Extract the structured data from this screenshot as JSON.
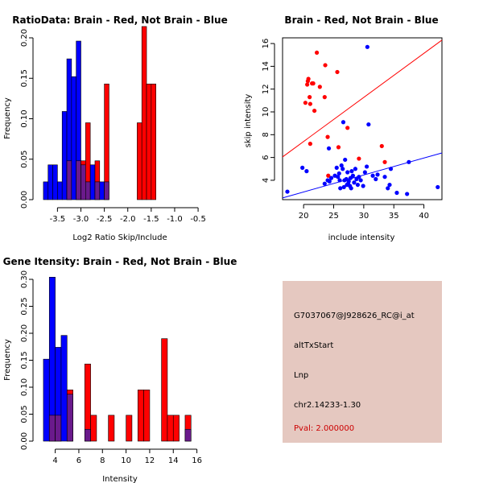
{
  "colors": {
    "red": "#ff0000",
    "blue": "#0000ff",
    "overlap": "#6a1a8c",
    "panel_bg": "#e5c8c0",
    "pval": "#cc0000"
  },
  "chart_data": [
    {
      "type": "bar",
      "subtype": "histogram",
      "title": "RatioData: Brain - Red, Not Brain - Blue",
      "xlabel": "Log2 Ratio Skip/Include",
      "ylabel": "Frequency",
      "xlim": [
        -3.85,
        -0.45
      ],
      "ylim": [
        0,
        0.2
      ],
      "xticks": [
        -3.5,
        -3.0,
        -2.5,
        -2.0,
        -1.5,
        -1.0,
        -0.5
      ],
      "xtick_labels": [
        "-3.5",
        "-3.0",
        "-2.5",
        "-2.0",
        "-1.5",
        "-1.0",
        "-0.5"
      ],
      "yticks": [
        0,
        0.05,
        0.1,
        0.15,
        0.2
      ],
      "ytick_labels": [
        "0.00",
        "0.05",
        "0.10",
        "0.15",
        "0.20"
      ],
      "bin_edges": [
        -3.8,
        -3.7,
        -3.6,
        -3.5,
        -3.4,
        -3.3,
        -3.2,
        -3.1,
        -3.0,
        -2.9,
        -2.8,
        -2.7,
        -2.6,
        -2.5,
        -2.4,
        -2.3,
        -2.2,
        -2.1,
        -2.0,
        -1.9,
        -1.8,
        -1.7,
        -1.6,
        -1.5,
        -1.4,
        -1.3,
        -1.2,
        -1.1,
        -1.0,
        -0.9,
        -0.8,
        -0.7,
        -0.6
      ],
      "series": [
        {
          "name": "Not Brain",
          "color": "blue",
          "values": [
            0.022,
            0.043,
            0.043,
            0.022,
            0.109,
            0.174,
            0.152,
            0.196,
            0.043,
            0.022,
            0.043,
            0.022,
            0.022,
            0.022,
            0,
            0,
            0,
            0,
            0,
            0,
            0,
            0,
            0,
            0,
            0,
            0,
            0,
            0,
            0,
            0,
            0,
            0
          ]
        },
        {
          "name": "Brain",
          "color": "red",
          "values": [
            0,
            0,
            0,
            0,
            0,
            0.048,
            0,
            0.048,
            0.048,
            0.095,
            0,
            0.048,
            0,
            0.143,
            0,
            0,
            0,
            0,
            0,
            0,
            0.095,
            0.214,
            0.143,
            0.143,
            0,
            0,
            0,
            0,
            0,
            0,
            0,
            0
          ]
        }
      ]
    },
    {
      "type": "scatter",
      "title": "Brain - Red, Not Brain - Blue",
      "xlabel": "include intensity",
      "ylabel": "skip intensity",
      "xlim": [
        16.5,
        43
      ],
      "ylim": [
        2.3,
        16.5
      ],
      "xticks": [
        20,
        25,
        30,
        35,
        40
      ],
      "xtick_labels": [
        "20",
        "25",
        "30",
        "35",
        "40"
      ],
      "yticks": [
        4,
        6,
        8,
        10,
        12,
        14,
        16
      ],
      "ytick_labels": [
        "4",
        "6",
        "8",
        "10",
        "12",
        "14",
        "16"
      ],
      "series": [
        {
          "name": "Brain",
          "color": "red",
          "points": [
            [
              20.3,
              10.8
            ],
            [
              20.7,
              12.7
            ],
            [
              20.8,
              12.9
            ],
            [
              21.0,
              11.3
            ],
            [
              21.1,
              10.7
            ],
            [
              21.4,
              12.5
            ],
            [
              21.6,
              12.5
            ],
            [
              21.8,
              10.1
            ],
            [
              22.2,
              15.2
            ],
            [
              20.6,
              12.4
            ],
            [
              22.7,
              12.2
            ],
            [
              23.5,
              11.3
            ],
            [
              23.6,
              14.1
            ],
            [
              24.0,
              7.8
            ],
            [
              24.1,
              4.4
            ],
            [
              25.6,
              13.5
            ],
            [
              25.8,
              6.9
            ],
            [
              27.3,
              8.6
            ],
            [
              29.2,
              5.9
            ],
            [
              33.0,
              7.0
            ],
            [
              33.5,
              5.6
            ],
            [
              21.1,
              7.2
            ]
          ]
        },
        {
          "name": "Not Brain",
          "color": "blue",
          "points": [
            [
              17.3,
              3.0
            ],
            [
              19.8,
              5.1
            ],
            [
              20.5,
              4.8
            ],
            [
              23.5,
              3.7
            ],
            [
              24.0,
              4.0
            ],
            [
              24.2,
              6.8
            ],
            [
              24.3,
              3.9
            ],
            [
              24.6,
              4.2
            ],
            [
              25.2,
              4.4
            ],
            [
              25.5,
              5.1
            ],
            [
              25.7,
              4.3
            ],
            [
              25.9,
              4.6
            ],
            [
              26.1,
              3.3
            ],
            [
              26.3,
              5.3
            ],
            [
              26.5,
              5.0
            ],
            [
              26.6,
              9.1
            ],
            [
              26.7,
              3.4
            ],
            [
              26.8,
              4.0
            ],
            [
              26.9,
              5.8
            ],
            [
              27.1,
              4.1
            ],
            [
              27.2,
              3.6
            ],
            [
              27.3,
              4.7
            ],
            [
              27.4,
              3.7
            ],
            [
              27.5,
              3.9
            ],
            [
              27.7,
              3.5
            ],
            [
              27.8,
              4.2
            ],
            [
              28.0,
              4.8
            ],
            [
              28.2,
              4.4
            ],
            [
              28.4,
              3.8
            ],
            [
              28.6,
              5.0
            ],
            [
              28.8,
              4.1
            ],
            [
              29.0,
              3.6
            ],
            [
              29.2,
              4.3
            ],
            [
              29.5,
              4.0
            ],
            [
              29.9,
              3.5
            ],
            [
              30.2,
              4.7
            ],
            [
              30.5,
              5.2
            ],
            [
              30.6,
              15.7
            ],
            [
              30.8,
              8.9
            ],
            [
              31.5,
              4.4
            ],
            [
              32.0,
              4.1
            ],
            [
              32.3,
              4.5
            ],
            [
              33.5,
              4.3
            ],
            [
              34.0,
              3.3
            ],
            [
              34.3,
              3.6
            ],
            [
              34.5,
              5.0
            ],
            [
              35.5,
              2.9
            ],
            [
              37.2,
              2.8
            ],
            [
              37.5,
              5.6
            ],
            [
              42.3,
              3.4
            ],
            [
              26.0,
              4.0
            ],
            [
              27.9,
              3.3
            ]
          ]
        }
      ],
      "lines": [
        {
          "color": "red",
          "from": [
            16.5,
            6.05
          ],
          "to": [
            43,
            16.3
          ]
        },
        {
          "color": "blue",
          "from": [
            16.5,
            2.45
          ],
          "to": [
            43,
            6.4
          ]
        }
      ]
    },
    {
      "type": "bar",
      "subtype": "histogram",
      "title": "Gene Itensity: Brain - Red, Not Brain - Blue",
      "xlabel": "Intensity",
      "ylabel": "Frequency",
      "xlim": [
        2.8,
        16.3
      ],
      "ylim": [
        0,
        0.3
      ],
      "xticks": [
        4,
        6,
        8,
        10,
        12,
        14,
        16
      ],
      "xtick_labels": [
        "4",
        "6",
        "8",
        "10",
        "12",
        "14",
        "16"
      ],
      "yticks": [
        0,
        0.05,
        0.1,
        0.15,
        0.2,
        0.25,
        0.3
      ],
      "ytick_labels": [
        "0.00",
        "0.05",
        "0.10",
        "0.15",
        "0.20",
        "0.25",
        "0.30"
      ],
      "bin_edges": [
        3.0,
        3.5,
        4.0,
        4.5,
        5.0,
        5.5,
        6.0,
        6.5,
        7.0,
        7.5,
        8.0,
        8.5,
        9.0,
        9.5,
        10.0,
        10.5,
        11.0,
        11.5,
        12.0,
        12.5,
        13.0,
        13.5,
        14.0,
        14.5,
        15.0,
        15.5,
        16.0
      ],
      "series": [
        {
          "name": "Not Brain",
          "color": "blue",
          "values": [
            0.152,
            0.304,
            0.174,
            0.196,
            0.087,
            0,
            0,
            0.022,
            0,
            0,
            0,
            0,
            0,
            0,
            0,
            0,
            0,
            0,
            0,
            0,
            0,
            0,
            0,
            0,
            0.022,
            0
          ]
        },
        {
          "name": "Brain",
          "color": "red",
          "values": [
            0,
            0.048,
            0.048,
            0,
            0.095,
            0,
            0,
            0.143,
            0.048,
            0,
            0,
            0.048,
            0,
            0,
            0.048,
            0,
            0.095,
            0.095,
            0,
            0,
            0.19,
            0.048,
            0.048,
            0,
            0.048,
            0
          ]
        }
      ]
    }
  ],
  "info_panel": {
    "probe_id": "G7037067@J928626_RC@i_at",
    "event_type": "altTxStart",
    "tissue": "Lnp",
    "location": "chr2.14233-1.30",
    "pval": "Pval: 2.000000"
  }
}
